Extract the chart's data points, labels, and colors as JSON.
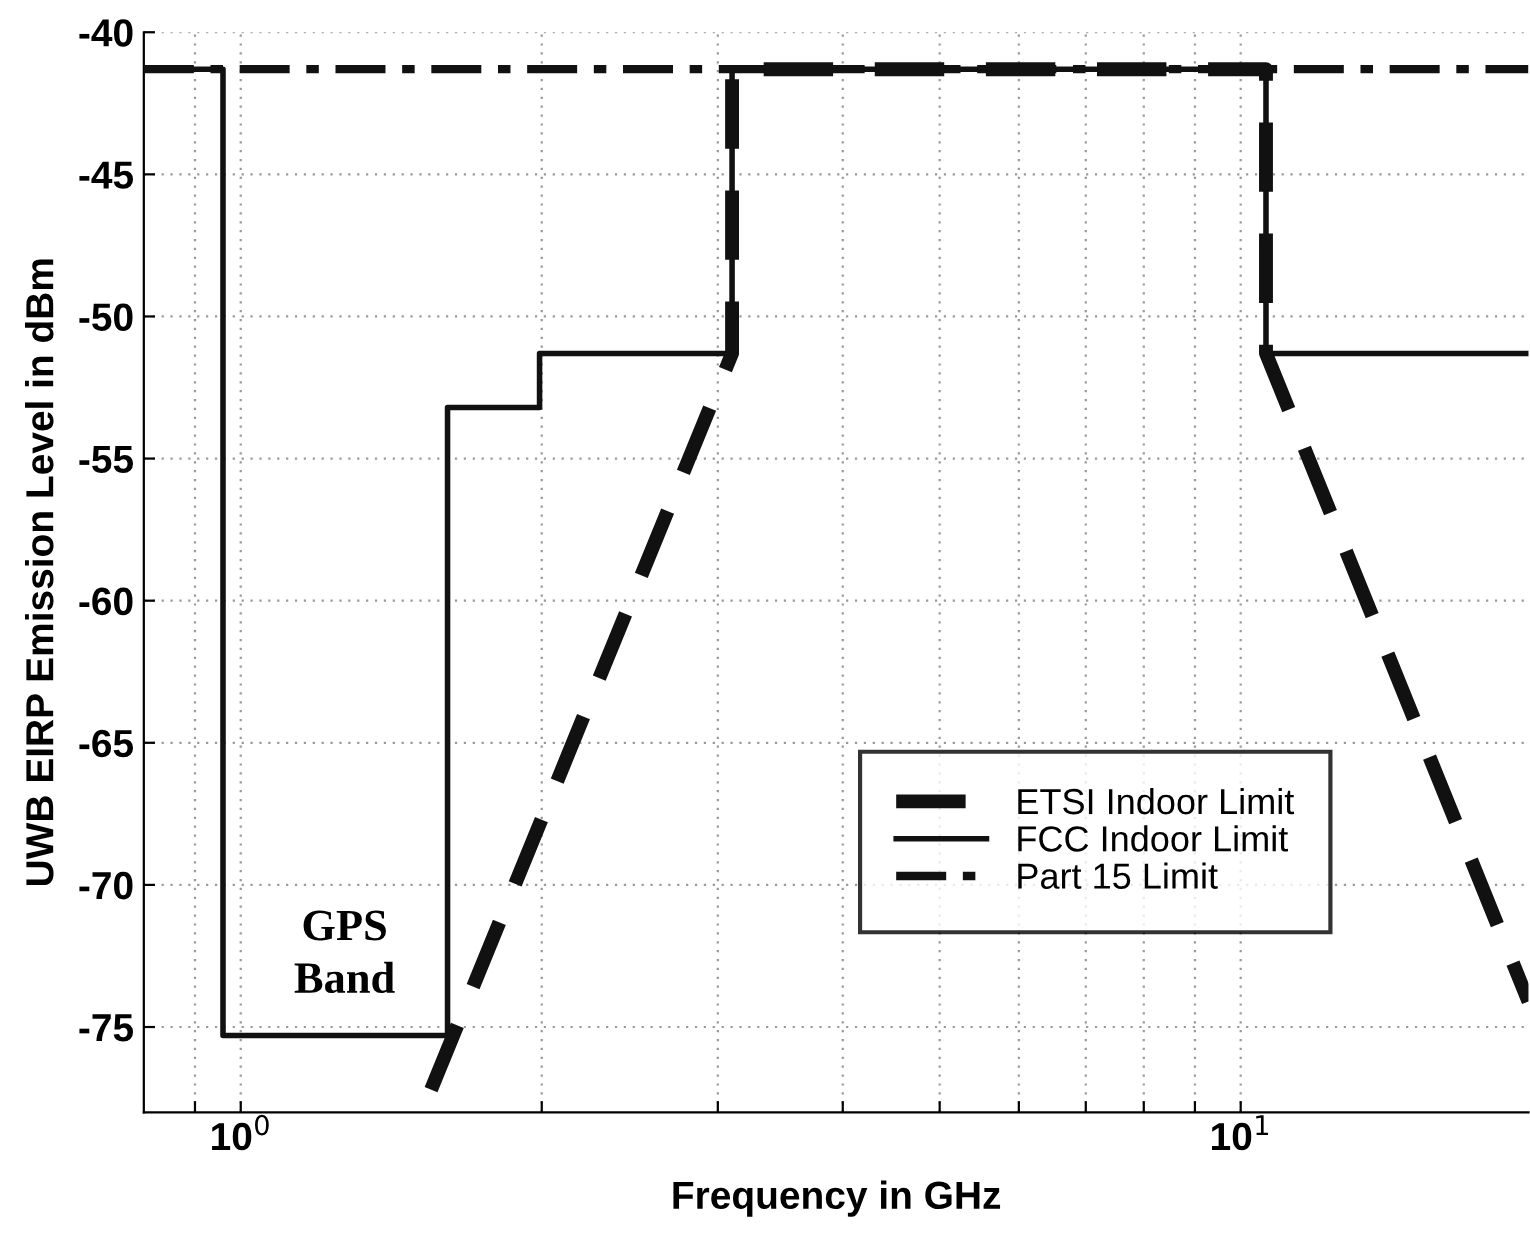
{
  "chart_data": {
    "type": "line",
    "xlabel": "Frequency in GHz",
    "ylabel": "UWB EIRP Emission Level in dBm",
    "log": "x",
    "xlim": [
      0.8,
      19.4
    ],
    "ylim": [
      -78,
      -40
    ],
    "xticks": [
      {
        "value": 0.9,
        "label": null
      },
      {
        "value": 1,
        "label": "10$^{0}$"
      },
      {
        "value": 2,
        "label": null
      },
      {
        "value": 3,
        "label": null
      },
      {
        "value": 4,
        "label": null
      },
      {
        "value": 5,
        "label": null
      },
      {
        "value": 6,
        "label": null
      },
      {
        "value": 7,
        "label": null
      },
      {
        "value": 8,
        "label": null
      },
      {
        "value": 9,
        "label": null
      },
      {
        "value": 10,
        "label": "10$^{1}$"
      }
    ],
    "yticks": [
      -75,
      -70,
      -65,
      -60,
      -55,
      -50,
      -45,
      -40
    ],
    "grid": true,
    "legend": "lower right",
    "marker": "none",
    "annotations": [
      "GPS\nBand"
    ],
    "series": [
      {
        "name": "ETSI Indoor Limit",
        "color": "#111111",
        "line_style": "dashed",
        "x": [
          1.55,
          3.1,
          3.1,
          10.6,
          10.6,
          19.4
        ],
        "values": [
          -77.2,
          -51.3,
          -41.3,
          -41.3,
          -51.3,
          -74.1
        ]
      },
      {
        "name": "FCC Indoor Limit",
        "color": "#111111",
        "line_style": "solid",
        "x": [
          0.8,
          0.96,
          0.96,
          1.61,
          1.61,
          1.99,
          1.99,
          3.1,
          3.1,
          10.6,
          10.6,
          19.4
        ],
        "values": [
          -41.3,
          -41.3,
          -75.3,
          -75.3,
          -53.2,
          -53.2,
          -51.3,
          -51.3,
          -41.3,
          -41.3,
          -51.3,
          -51.3
        ]
      },
      {
        "name": "Part 15 Limit",
        "color": "#111111",
        "line_style": "dashdot",
        "x": [
          0.8,
          19.4
        ],
        "values": [
          -41.3,
          -41.3
        ]
      }
    ]
  }
}
